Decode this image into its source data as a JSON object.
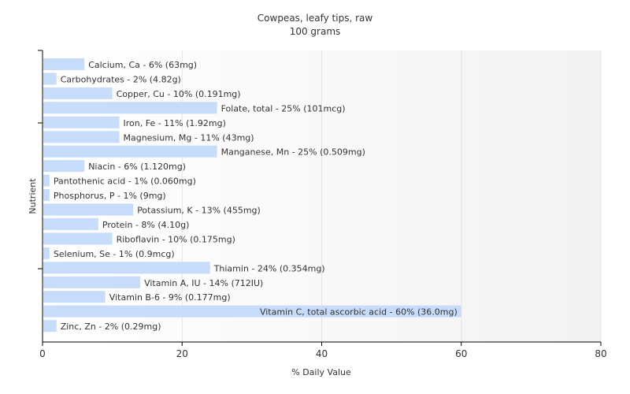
{
  "chart_data": {
    "type": "bar",
    "orientation": "horizontal",
    "title": "Cowpeas, leafy tips, raw",
    "subtitle": "100 grams",
    "xlabel": "% Daily Value",
    "ylabel": "Nutrient",
    "xlim": [
      0,
      80
    ],
    "xticks": [
      0,
      20,
      40,
      60,
      80
    ],
    "grid": true,
    "bar_color": "#c6dcfa",
    "categories": [
      "Calcium, Ca",
      "Carbohydrates",
      "Copper, Cu",
      "Folate, total",
      "Iron, Fe",
      "Magnesium, Mg",
      "Manganese, Mn",
      "Niacin",
      "Pantothenic acid",
      "Phosphorus, P",
      "Potassium, K",
      "Protein",
      "Riboflavin",
      "Selenium, Se",
      "Thiamin",
      "Vitamin A, IU",
      "Vitamin B-6",
      "Vitamin C, total ascorbic acid",
      "Zinc, Zn"
    ],
    "values": [
      6,
      2,
      10,
      25,
      11,
      11,
      25,
      6,
      1,
      1,
      13,
      8,
      10,
      1,
      24,
      14,
      9,
      60,
      2
    ],
    "labels": [
      "Calcium, Ca - 6% (63mg)",
      "Carbohydrates - 2% (4.82g)",
      "Copper, Cu - 10% (0.191mg)",
      "Folate, total - 25% (101mcg)",
      "Iron, Fe - 11% (1.92mg)",
      "Magnesium, Mg - 11% (43mg)",
      "Manganese, Mn - 25% (0.509mg)",
      "Niacin - 6% (1.120mg)",
      "Pantothenic acid - 1% (0.060mg)",
      "Phosphorus, P - 1% (9mg)",
      "Potassium, K - 13% (455mg)",
      "Protein - 8% (4.10g)",
      "Riboflavin - 10% (0.175mg)",
      "Selenium, Se - 1% (0.9mcg)",
      "Thiamin - 24% (0.354mg)",
      "Vitamin A, IU - 14% (712IU)",
      "Vitamin B-6 - 9% (0.177mg)",
      "Vitamin C, total ascorbic acid - 60% (36.0mg)",
      "Zinc, Zn - 2% (0.29mg)"
    ]
  }
}
